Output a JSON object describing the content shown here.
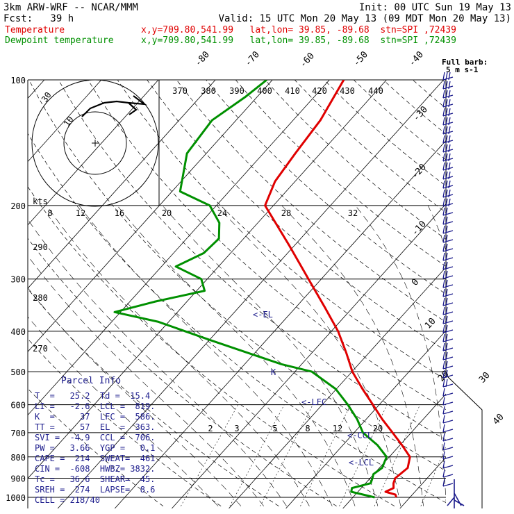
{
  "header": {
    "model": "3km ARW-WRF -- NCAR/MMM",
    "init": "Init: 00 UTC Sun 19 May 13",
    "fcst": "Fcst:   39 h",
    "valid": "Valid: 15 UTC Mon 20 May 13 (09 MDT Mon 20 May 13)",
    "temp_label": "Temperature",
    "dew_label": "Dewpoint temperature",
    "temp_info": "x,y=709.80,541.99   lat,lon= 39.85, -89.68  stn=SPI ,72439",
    "dew_info": "x,y=709.80,541.99   lat,lon= 39.85, -89.68  stn=SPI ,72439"
  },
  "colors": {
    "temperature": "#e00000",
    "dewpoint": "#009000",
    "barbs": "#1c1c8c",
    "annotation": "#1c1c8c"
  },
  "chart_data": {
    "type": "line",
    "pressure_levels": [
      "100",
      "200",
      "300",
      "400",
      "500",
      "600",
      "700",
      "800",
      "900",
      "1000"
    ],
    "theta_e_labels": [
      "370",
      "380",
      "390",
      "400",
      "410",
      "420",
      "430",
      "440"
    ],
    "mixing_ratio_labels": [
      "2",
      "3",
      "5",
      "8",
      "12",
      "20"
    ],
    "theta_labels": [
      "290",
      "280",
      "270"
    ],
    "hodo_speed_labels": [
      "8",
      "12",
      "16",
      "20",
      "24",
      "28",
      "32"
    ],
    "hodo_units": "kts",
    "hodo_ring_labels": [
      "30",
      "10"
    ],
    "isotherm_labels": [
      "-80",
      "-70",
      "-60",
      "-50",
      "-40",
      "-30",
      "-20",
      "-10",
      "0",
      "10",
      "20",
      "30",
      "40"
    ],
    "annotations": [
      "<-EL",
      "<-LFC",
      "<-CCL",
      "<-LCL",
      "K"
    ],
    "barb_legend": [
      "Full barb:",
      "5 m s-1"
    ],
    "series": [
      {
        "name": "Temperature",
        "points": [
          [
            1000,
            19.8
          ],
          [
            985,
            19.2
          ],
          [
            970,
            17.0
          ],
          [
            950,
            17.8
          ],
          [
            925,
            17.0
          ],
          [
            900,
            16.5
          ],
          [
            850,
            17.0
          ],
          [
            800,
            15.6
          ],
          [
            750,
            12.3
          ],
          [
            700,
            8.6
          ],
          [
            650,
            4.6
          ],
          [
            600,
            0.6
          ],
          [
            550,
            -3.8
          ],
          [
            500,
            -8.4
          ],
          [
            450,
            -12.6
          ],
          [
            400,
            -17.5
          ],
          [
            350,
            -23.8
          ],
          [
            300,
            -31.2
          ],
          [
            250,
            -39.9
          ],
          [
            200,
            -50.8
          ],
          [
            175,
            -53.0
          ],
          [
            150,
            -54.0
          ],
          [
            125,
            -55.0
          ],
          [
            100,
            -57.5
          ]
        ]
      },
      {
        "name": "Dewpoint temperature",
        "points": [
          [
            1000,
            16.0
          ],
          [
            970,
            11.0
          ],
          [
            950,
            10.5
          ],
          [
            925,
            13.0
          ],
          [
            900,
            12.5
          ],
          [
            880,
            12.0
          ],
          [
            850,
            12.5
          ],
          [
            800,
            11.5
          ],
          [
            750,
            8.0
          ],
          [
            700,
            3.4
          ],
          [
            650,
            0.2
          ],
          [
            600,
            -3.8
          ],
          [
            550,
            -8.5
          ],
          [
            500,
            -15.5
          ],
          [
            480,
            -22.0
          ],
          [
            450,
            -30.0
          ],
          [
            420,
            -38.5
          ],
          [
            380,
            -50.5
          ],
          [
            360,
            -59.8
          ],
          [
            340,
            -54.5
          ],
          [
            320,
            -47.5
          ],
          [
            300,
            -50.0
          ],
          [
            280,
            -56.5
          ],
          [
            260,
            -53.8
          ],
          [
            240,
            -53.5
          ],
          [
            220,
            -56.0
          ],
          [
            200,
            -60.5
          ],
          [
            185,
            -68.0
          ],
          [
            150,
            -73.0
          ],
          [
            125,
            -74.0
          ],
          [
            110,
            -72.0
          ],
          [
            100,
            -71.0
          ]
        ]
      }
    ],
    "parcel_info": {
      "title": "Parcel Info",
      "rows": [
        "T  =   25.2  Td =  15.4",
        "LI =   -2.6  LCL =  819.",
        "K  =     37  LFC =  586.",
        "TT =     57  EL  =  363.",
        "SVI =  -4.9  CCL =  706.",
        "PW =   3.66  YGP =   0.1",
        "CAPE =  214  SWEAT=  461",
        "CIN =  -608  HWBZ= 3832.",
        "Tc =   36.6  SHEAR=  45.",
        "SREH =  274  LAPSE=  8.6",
        "CELL = 218/40"
      ]
    }
  }
}
